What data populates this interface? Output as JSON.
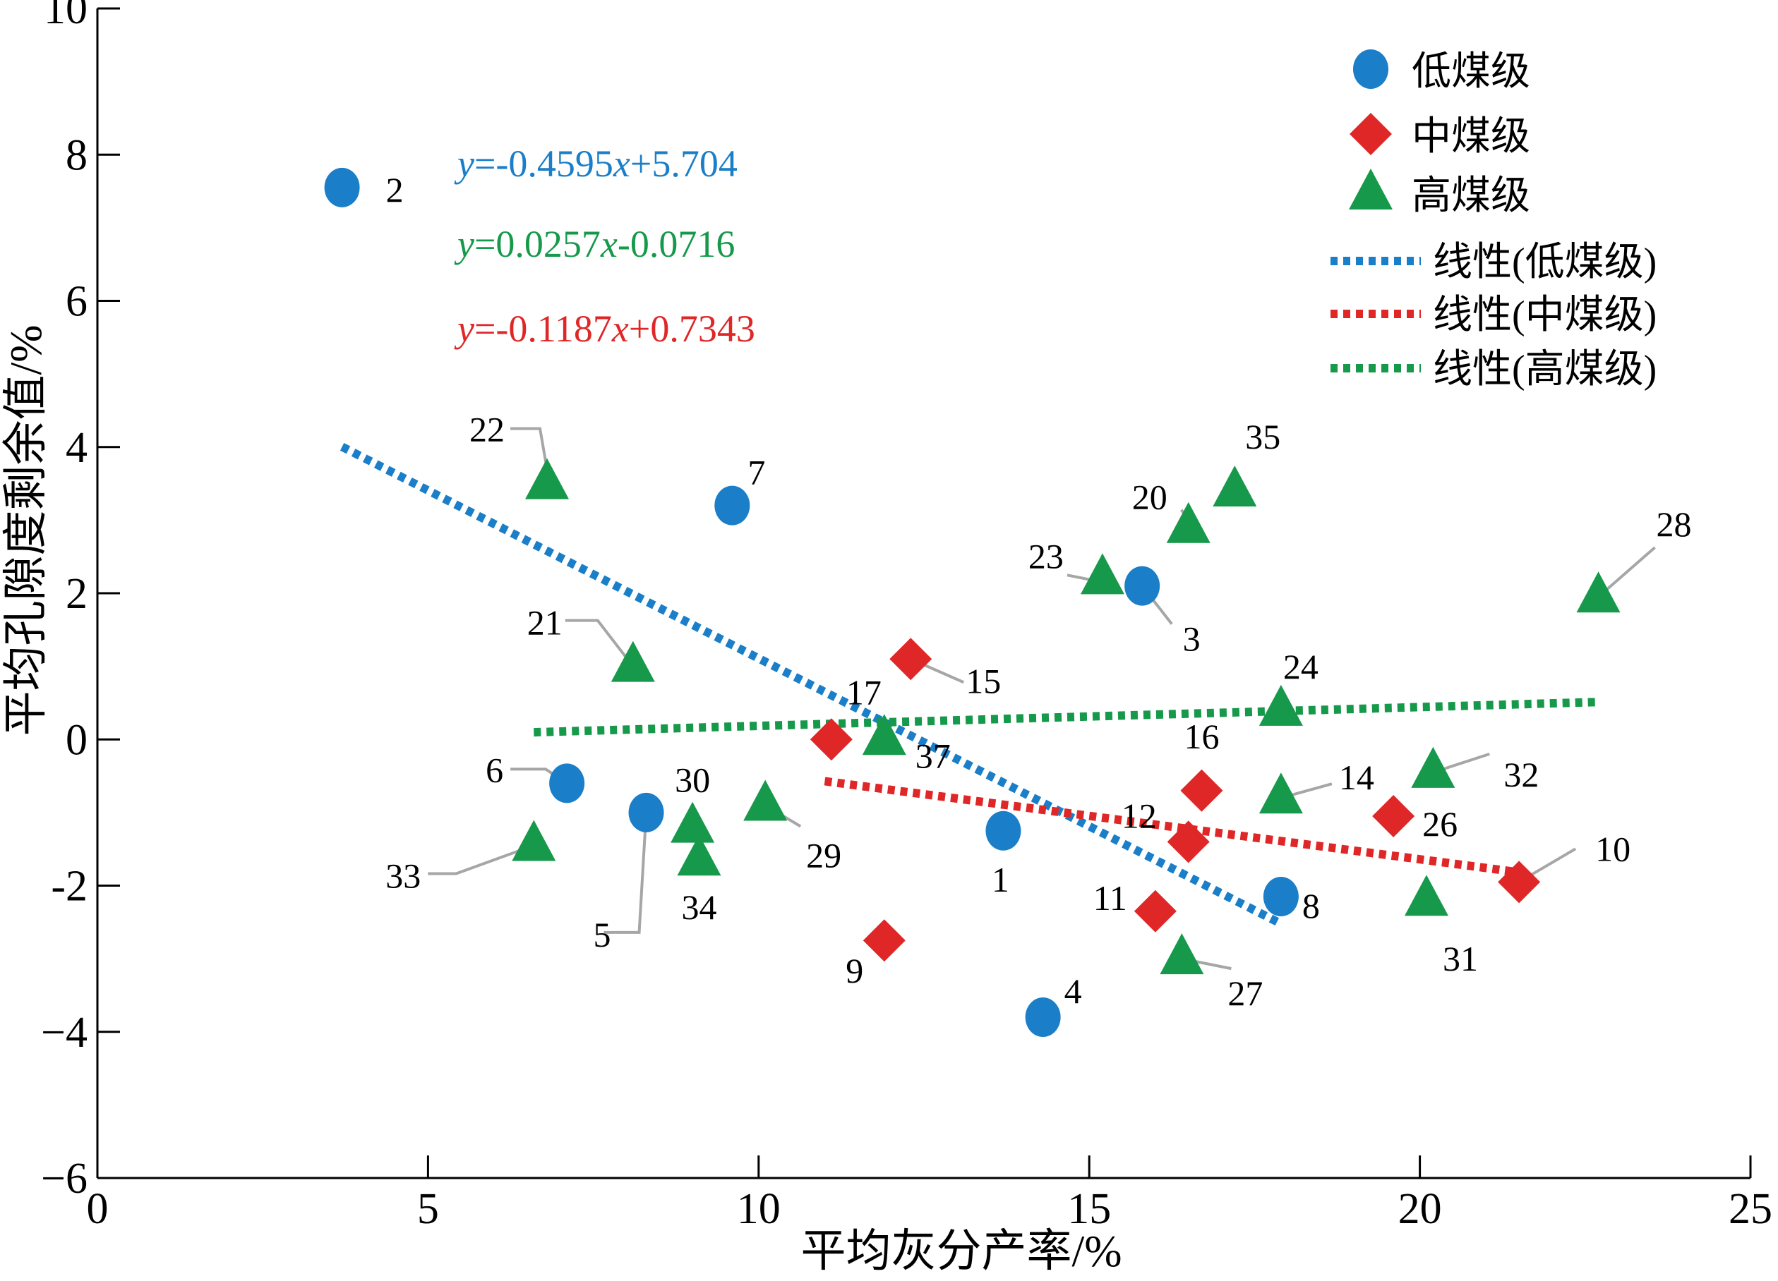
{
  "chart_data": {
    "type": "scatter",
    "xlabel": "平均灰分产率/%",
    "ylabel": "平均孔隙度剩余值/%",
    "xlim": [
      0,
      25
    ],
    "ylim": [
      -6,
      10
    ],
    "x_ticks": [
      "0",
      "5",
      "10",
      "15",
      "20",
      "25"
    ],
    "y_ticks": [
      "−6",
      "−4",
      "-2",
      "0",
      "2",
      "4",
      "6",
      "8",
      "10"
    ],
    "grid": false,
    "legend_position": "top-right",
    "series": [
      {
        "name": "低煤级",
        "marker": "circle",
        "color": "#1a7ec8",
        "points": [
          {
            "label": "2",
            "x": 3.7,
            "y": 7.55
          },
          {
            "label": "7",
            "x": 9.6,
            "y": 3.2
          },
          {
            "label": "3",
            "x": 15.8,
            "y": 2.1
          },
          {
            "label": "6",
            "x": 7.1,
            "y": -0.6
          },
          {
            "label": "5",
            "x": 8.3,
            "y": -1.0
          },
          {
            "label": "1",
            "x": 13.7,
            "y": -1.25
          },
          {
            "label": "8",
            "x": 17.9,
            "y": -2.15
          },
          {
            "label": "4",
            "x": 14.3,
            "y": -3.8
          }
        ]
      },
      {
        "name": "中煤级",
        "marker": "diamond",
        "color": "#e02727",
        "points": [
          {
            "label": "15",
            "x": 12.3,
            "y": 1.1
          },
          {
            "label": "17",
            "x": 11.1,
            "y": 0.0
          },
          {
            "label": "16",
            "x": 16.7,
            "y": -0.7
          },
          {
            "label": "12",
            "x": 16.5,
            "y": -1.4
          },
          {
            "label": "26",
            "x": 19.6,
            "y": -1.05
          },
          {
            "label": "11",
            "x": 16.0,
            "y": -2.35
          },
          {
            "label": "10",
            "x": 21.5,
            "y": -1.95
          },
          {
            "label": "9",
            "x": 11.9,
            "y": -2.75
          }
        ]
      },
      {
        "name": "高煤级",
        "marker": "triangle",
        "color": "#16994a",
        "points": [
          {
            "label": "22",
            "x": 6.8,
            "y": 3.5
          },
          {
            "label": "35",
            "x": 17.2,
            "y": 3.4
          },
          {
            "label": "20",
            "x": 16.5,
            "y": 2.9
          },
          {
            "label": "23",
            "x": 15.2,
            "y": 2.2
          },
          {
            "label": "28",
            "x": 22.7,
            "y": 1.95
          },
          {
            "label": "21",
            "x": 8.1,
            "y": 1.0
          },
          {
            "label": "24",
            "x": 17.9,
            "y": 0.4
          },
          {
            "label": "37",
            "x": 11.9,
            "y": 0.0
          },
          {
            "label": "32",
            "x": 20.2,
            "y": -0.45
          },
          {
            "label": "14",
            "x": 17.9,
            "y": -0.8
          },
          {
            "label": "29",
            "x": 10.1,
            "y": -0.9
          },
          {
            "label": "30",
            "x": 9.0,
            "y": -1.2
          },
          {
            "label": "33",
            "x": 6.6,
            "y": -1.45
          },
          {
            "label": "34",
            "x": 9.1,
            "y": -1.65
          },
          {
            "label": "31",
            "x": 20.1,
            "y": -2.2
          },
          {
            "label": "27",
            "x": 16.4,
            "y": -3.0
          }
        ]
      }
    ],
    "trendlines": [
      {
        "name": "线性(低煤级)",
        "color": "#1a7ec8",
        "slope": -0.4595,
        "intercept": 5.704,
        "x_range": [
          3.7,
          17.9
        ],
        "equation": "y=-0.4595x+5.704"
      },
      {
        "name": "线性(中煤级)",
        "color": "#e02727",
        "slope": -0.1187,
        "intercept": 0.7343,
        "x_range": [
          11.0,
          21.5
        ],
        "equation": "y=-0.1187x+0.7343"
      },
      {
        "name": "线性(高煤级)",
        "color": "#16994a",
        "slope": 0.0257,
        "intercept": -0.0716,
        "x_range": [
          6.6,
          22.7
        ],
        "equation": "y=0.0257x-0.0716"
      }
    ],
    "equations_display_order": [
      "y=-0.4595x+5.704",
      "y=0.0257x-0.0716",
      "y=-0.1187x+0.7343"
    ]
  },
  "legend": {
    "items": [
      {
        "label": "低煤级",
        "symbol": "circle",
        "color": "#1a7ec8"
      },
      {
        "label": "中煤级",
        "symbol": "diamond",
        "color": "#e02727"
      },
      {
        "label": "高煤级",
        "symbol": "triangle",
        "color": "#16994a"
      },
      {
        "label": "线性(低煤级)",
        "symbol": "dotted-line",
        "color": "#1a7ec8"
      },
      {
        "label": "线性(中煤级)",
        "symbol": "dotted-line",
        "color": "#e02727"
      },
      {
        "label": "线性(高煤级)",
        "symbol": "dotted-line",
        "color": "#16994a"
      }
    ]
  },
  "equations": [
    {
      "y": "y",
      "eq": "=-0.4595",
      "x": "x",
      "rest": "+5.704",
      "color": "#1a7ec8"
    },
    {
      "y": "y",
      "eq": "=0.0257",
      "x": "x",
      "rest": "-0.0716",
      "color": "#16994a"
    },
    {
      "y": "y",
      "eq": "=-0.1187",
      "x": "x",
      "rest": "+0.7343",
      "color": "#e02727"
    }
  ]
}
